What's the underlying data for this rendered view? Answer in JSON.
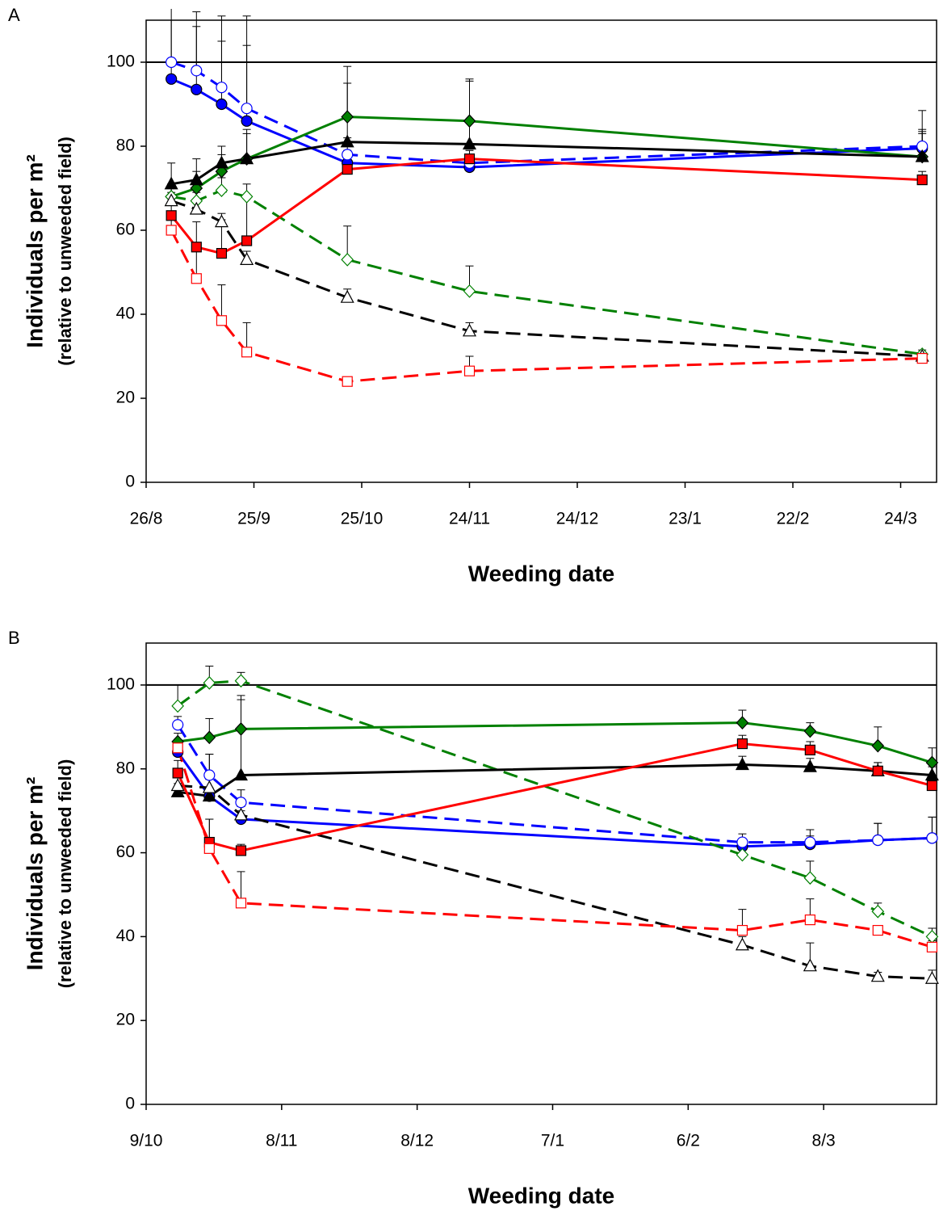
{
  "chart_data": [
    {
      "type": "line",
      "panel_label": "A",
      "x_label": "Weeding date",
      "y_label": "Individuals per m²",
      "y_sublabel": "(relative to unweeded field)",
      "xlim": [
        0,
        220
      ],
      "xticks": [
        {
          "value": 0,
          "label": "26/8"
        },
        {
          "value": 30,
          "label": "25/9"
        },
        {
          "value": 60,
          "label": "25/10"
        },
        {
          "value": 90,
          "label": "24/11"
        },
        {
          "value": 120,
          "label": "24/12"
        },
        {
          "value": 150,
          "label": "23/1"
        },
        {
          "value": 180,
          "label": "22/2"
        },
        {
          "value": 210,
          "label": "24/3"
        }
      ],
      "ylim": [
        0,
        110
      ],
      "yticks": [
        0,
        20,
        40,
        60,
        80,
        100
      ],
      "refline": 100,
      "x": [
        7,
        14,
        21,
        28,
        56,
        90,
        216
      ],
      "series": [
        {
          "color": "#0000ff",
          "marker": "circle",
          "filled": true,
          "dashed": false,
          "values": [
            96,
            93.5,
            90,
            86,
            76,
            75,
            79.5
          ],
          "errors": [
            14,
            15,
            15,
            18,
            3,
            3,
            4
          ]
        },
        {
          "color": "#0000ff",
          "marker": "circle",
          "filled": false,
          "dashed": true,
          "values": [
            100,
            98,
            94,
            89,
            78,
            76,
            80
          ],
          "errors": [
            15,
            14,
            17,
            22,
            4,
            3,
            4
          ]
        },
        {
          "color": "#008000",
          "marker": "diamond",
          "filled": true,
          "dashed": false,
          "values": [
            68,
            70,
            74,
            77,
            87,
            86,
            77.5
          ],
          "errors": [
            3,
            4,
            4,
            6,
            12,
            10,
            11
          ]
        },
        {
          "color": "#008000",
          "marker": "diamond",
          "filled": false,
          "dashed": true,
          "values": [
            68,
            67,
            69.5,
            68,
            53,
            45.5,
            30.5
          ],
          "errors": [
            2,
            2,
            3,
            3,
            8,
            6,
            1
          ]
        },
        {
          "color": "#000000",
          "marker": "triangle",
          "filled": true,
          "dashed": false,
          "values": [
            71,
            72,
            76,
            77,
            81,
            80.5,
            77.5
          ],
          "errors": [
            5,
            5,
            4,
            7,
            14,
            15,
            5.5
          ]
        },
        {
          "color": "#000000",
          "marker": "triangle",
          "filled": false,
          "dashed": true,
          "values": [
            67,
            65,
            62,
            53,
            44,
            36,
            30
          ],
          "errors": [
            2,
            2,
            2,
            2,
            2,
            2,
            1
          ]
        },
        {
          "color": "#ff0000",
          "marker": "square",
          "filled": true,
          "dashed": false,
          "values": [
            63.5,
            56,
            54.5,
            57.5,
            74.5,
            77,
            72
          ],
          "errors": [
            3,
            6,
            8,
            10,
            3,
            2,
            2
          ]
        },
        {
          "color": "#ff0000",
          "marker": "square",
          "filled": false,
          "dashed": true,
          "values": [
            60,
            48.5,
            38.5,
            31,
            24,
            26.5,
            29.5
          ],
          "errors": [
            3,
            8,
            8.5,
            7,
            1,
            3.5,
            1
          ]
        }
      ]
    },
    {
      "type": "line",
      "panel_label": "B",
      "x_label": "Weeding date",
      "y_label": "Individuals per m²",
      "y_sublabel": "(relative to unweeded field)",
      "xlim": [
        0,
        175
      ],
      "xticks": [
        {
          "value": 0,
          "label": "9/10"
        },
        {
          "value": 30,
          "label": "8/11"
        },
        {
          "value": 60,
          "label": "8/12"
        },
        {
          "value": 90,
          "label": "7/1"
        },
        {
          "value": 120,
          "label": "6/2"
        },
        {
          "value": 150,
          "label": "8/3"
        }
      ],
      "ylim": [
        0,
        110
      ],
      "yticks": [
        0,
        20,
        40,
        60,
        80,
        100
      ],
      "refline": 100,
      "x": [
        7,
        14,
        21,
        132,
        147,
        162,
        174
      ],
      "series": [
        {
          "color": "#0000ff",
          "marker": "circle",
          "filled": true,
          "dashed": false,
          "values": [
            84,
            73.5,
            68,
            61.5,
            62,
            63,
            63.5
          ],
          "errors": [
            3,
            10,
            2,
            1,
            2,
            4,
            5
          ]
        },
        {
          "color": "#0000ff",
          "marker": "circle",
          "filled": false,
          "dashed": true,
          "values": [
            90.5,
            78.5,
            72,
            62.5,
            62.5,
            63,
            63.5
          ],
          "errors": [
            2,
            5,
            3,
            2,
            3,
            4,
            5
          ]
        },
        {
          "color": "#008000",
          "marker": "diamond",
          "filled": true,
          "dashed": false,
          "values": [
            86.5,
            87.5,
            89.5,
            91,
            89,
            85.5,
            81.5
          ],
          "errors": [
            2,
            4.5,
            8,
            3,
            2,
            4.5,
            3.5
          ]
        },
        {
          "color": "#008000",
          "marker": "diamond",
          "filled": false,
          "dashed": true,
          "values": [
            95,
            100.5,
            101,
            59.5,
            54,
            46,
            40
          ],
          "errors": [
            5,
            4,
            2,
            2,
            4,
            2,
            2
          ]
        },
        {
          "color": "#000000",
          "marker": "triangle",
          "filled": true,
          "dashed": false,
          "values": [
            74.5,
            73.5,
            78.5,
            81,
            80.5,
            79.5,
            78.5
          ],
          "errors": [
            2,
            2,
            18,
            2,
            2,
            2,
            2
          ]
        },
        {
          "color": "#000000",
          "marker": "triangle",
          "filled": false,
          "dashed": true,
          "values": [
            76,
            75.5,
            69,
            38,
            33,
            30.5,
            30
          ],
          "errors": [
            2,
            2,
            2,
            2,
            5.5,
            1,
            2
          ]
        },
        {
          "color": "#ff0000",
          "marker": "square",
          "filled": true,
          "dashed": false,
          "values": [
            79,
            62.5,
            60.5,
            86,
            84.5,
            79.5,
            76
          ],
          "errors": [
            3,
            5.5,
            1.5,
            2,
            2,
            2,
            2
          ]
        },
        {
          "color": "#ff0000",
          "marker": "square",
          "filled": false,
          "dashed": true,
          "values": [
            85,
            61,
            48,
            41.5,
            44,
            41.5,
            37.5
          ],
          "errors": [
            2,
            7,
            7.5,
            5,
            5,
            1,
            1.5
          ]
        }
      ]
    }
  ]
}
